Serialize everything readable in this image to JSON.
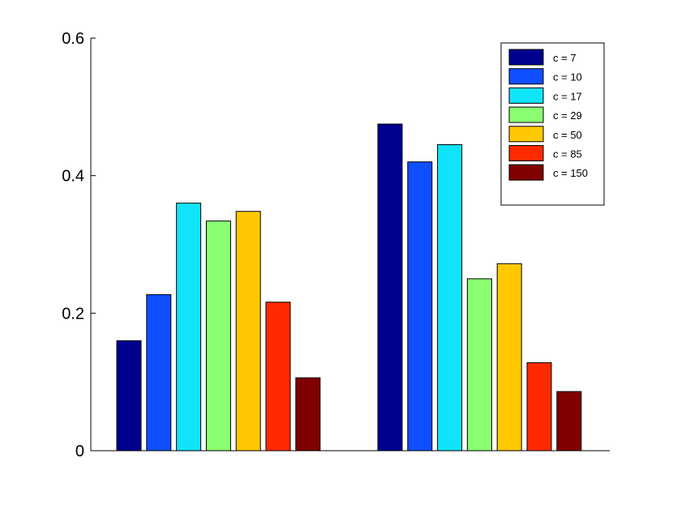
{
  "chart_data": {
    "type": "bar",
    "categories": [
      "",
      ""
    ],
    "series": [
      {
        "name": "c = 7",
        "color": "#00008F",
        "values": [
          0.16,
          0.475
        ]
      },
      {
        "name": "c = 10",
        "color": "#0F4FFF",
        "values": [
          0.227,
          0.42
        ]
      },
      {
        "name": "c = 17",
        "color": "#10E4F8",
        "values": [
          0.36,
          0.445
        ]
      },
      {
        "name": "c = 29",
        "color": "#8AFF72",
        "values": [
          0.334,
          0.25
        ]
      },
      {
        "name": "c = 50",
        "color": "#FFC800",
        "values": [
          0.348,
          0.272
        ]
      },
      {
        "name": "c = 85",
        "color": "#FF2A00",
        "values": [
          0.216,
          0.128
        ]
      },
      {
        "name": "c = 150",
        "color": "#800000",
        "values": [
          0.106,
          0.086
        ]
      }
    ],
    "ylim": [
      0,
      0.6
    ],
    "yticks": [
      {
        "value": 0,
        "label": "0"
      },
      {
        "value": 0.2,
        "label": "0.2"
      },
      {
        "value": 0.4,
        "label": "0.4"
      },
      {
        "value": 0.6,
        "label": "0.6"
      }
    ],
    "title": "",
    "xlabel": "",
    "ylabel": "",
    "grid": false,
    "legend_position": "top-right"
  }
}
